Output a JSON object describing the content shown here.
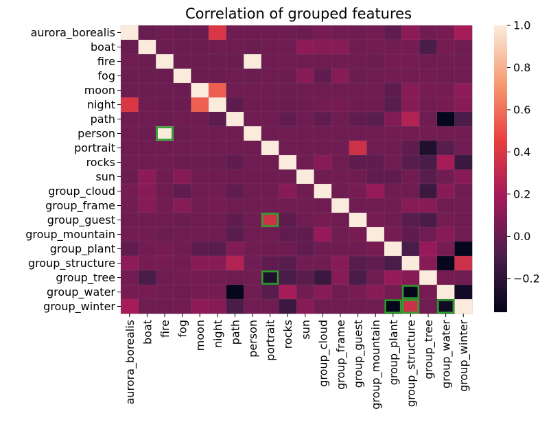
{
  "chart_data": {
    "type": "heatmap",
    "title": "Correlation of grouped features",
    "xlabel": "",
    "ylabel": "",
    "labels": [
      "aurora_borealis",
      "boat",
      "fire",
      "fog",
      "moon",
      "night",
      "path",
      "person",
      "portrait",
      "rocks",
      "sun",
      "group_cloud",
      "group_frame",
      "group_guest",
      "group_mountain",
      "group_plant",
      "group_structure",
      "group_tree",
      "group_water",
      "group_winter"
    ],
    "values": [
      [
        1.0,
        0.0,
        0.02,
        0.01,
        0.01,
        0.4,
        0.02,
        0.02,
        0.02,
        0.02,
        0.01,
        0.05,
        0.03,
        0.02,
        0.03,
        -0.02,
        0.12,
        0.03,
        0.05,
        0.2
      ],
      [
        0.0,
        1.0,
        0.01,
        0.01,
        0.01,
        0.02,
        0.02,
        0.01,
        0.02,
        0.02,
        0.12,
        0.1,
        0.1,
        0.02,
        0.03,
        0.03,
        0.05,
        -0.1,
        0.05,
        0.02
      ],
      [
        0.02,
        0.01,
        1.0,
        0.01,
        0.01,
        0.01,
        0.01,
        1.0,
        0.02,
        0.02,
        0.02,
        0.02,
        0.03,
        0.02,
        0.01,
        0.05,
        0.05,
        0.02,
        0.03,
        0.02
      ],
      [
        0.01,
        0.01,
        0.01,
        1.0,
        0.01,
        0.01,
        0.02,
        0.01,
        0.02,
        0.01,
        0.1,
        -0.02,
        0.1,
        0.01,
        0.02,
        0.03,
        0.03,
        0.03,
        0.02,
        0.02
      ],
      [
        0.01,
        0.01,
        0.01,
        0.01,
        1.0,
        0.55,
        0.02,
        0.02,
        0.02,
        0.01,
        0.02,
        0.02,
        0.02,
        0.02,
        0.02,
        -0.03,
        0.1,
        0.05,
        0.05,
        0.12
      ],
      [
        0.4,
        0.02,
        0.01,
        0.01,
        0.55,
        1.0,
        -0.03,
        0.02,
        0.02,
        0.01,
        0.02,
        0.03,
        0.05,
        0.02,
        0.02,
        -0.05,
        0.1,
        0.03,
        0.05,
        0.1
      ],
      [
        0.02,
        0.02,
        0.01,
        0.02,
        0.02,
        -0.03,
        1.0,
        0.02,
        0.02,
        -0.02,
        0.02,
        -0.02,
        0.02,
        -0.02,
        -0.05,
        0.08,
        0.25,
        0.02,
        -0.35,
        -0.1
      ],
      [
        0.02,
        0.01,
        1.0,
        0.01,
        0.02,
        0.02,
        0.02,
        1.0,
        0.02,
        0.02,
        0.02,
        0.02,
        0.02,
        0.02,
        0.02,
        0.03,
        0.03,
        0.03,
        0.03,
        0.03
      ],
      [
        0.02,
        0.02,
        0.02,
        0.02,
        0.02,
        0.02,
        0.02,
        0.02,
        1.0,
        0.02,
        0.02,
        0.02,
        0.03,
        0.35,
        0.02,
        0.02,
        -0.02,
        -0.25,
        -0.05,
        0.02
      ],
      [
        0.02,
        0.02,
        0.02,
        0.01,
        0.01,
        0.01,
        -0.02,
        0.02,
        0.02,
        1.0,
        0.02,
        0.1,
        0.02,
        -0.03,
        -0.02,
        0.02,
        -0.05,
        -0.1,
        0.2,
        -0.15
      ],
      [
        0.01,
        0.12,
        0.02,
        0.1,
        0.02,
        0.02,
        0.02,
        0.02,
        0.02,
        0.02,
        1.0,
        0.02,
        0.03,
        0.02,
        -0.02,
        -0.02,
        0.03,
        -0.05,
        0.03,
        0.1
      ],
      [
        0.05,
        0.1,
        0.02,
        -0.02,
        0.02,
        0.03,
        -0.02,
        0.02,
        0.02,
        0.1,
        0.02,
        1.0,
        0.02,
        0.05,
        0.15,
        0.02,
        0.02,
        -0.15,
        0.1,
        0.02
      ],
      [
        0.03,
        0.1,
        0.03,
        0.1,
        0.02,
        0.05,
        0.02,
        0.02,
        0.03,
        0.02,
        0.03,
        0.02,
        1.0,
        0.02,
        0.02,
        0.02,
        0.1,
        0.1,
        0.02,
        0.02
      ],
      [
        0.02,
        0.02,
        0.02,
        0.01,
        0.02,
        0.02,
        -0.02,
        0.02,
        0.35,
        -0.03,
        0.02,
        0.05,
        0.02,
        1.0,
        0.05,
        0.02,
        -0.05,
        -0.1,
        0.05,
        0.02
      ],
      [
        0.03,
        0.03,
        0.01,
        0.02,
        0.02,
        0.02,
        -0.05,
        0.02,
        0.02,
        -0.02,
        -0.02,
        0.15,
        0.02,
        0.05,
        1.0,
        0.05,
        -0.02,
        0.02,
        0.1,
        0.02
      ],
      [
        -0.02,
        0.03,
        0.05,
        0.03,
        -0.03,
        -0.05,
        0.08,
        0.03,
        0.02,
        0.02,
        -0.02,
        0.02,
        0.02,
        0.02,
        0.05,
        1.0,
        -0.1,
        0.15,
        0.05,
        -0.35
      ],
      [
        0.12,
        0.05,
        0.05,
        0.03,
        0.1,
        0.1,
        0.25,
        0.03,
        -0.02,
        -0.05,
        0.03,
        0.02,
        0.1,
        -0.05,
        -0.02,
        -0.1,
        1.0,
        0.1,
        -0.35,
        0.35
      ],
      [
        0.03,
        -0.1,
        0.02,
        0.03,
        0.05,
        0.03,
        0.02,
        0.03,
        -0.25,
        -0.1,
        -0.05,
        -0.15,
        0.1,
        -0.1,
        0.02,
        0.15,
        0.1,
        1.0,
        0.05,
        0.02
      ],
      [
        0.05,
        0.05,
        0.03,
        0.02,
        0.05,
        0.05,
        -0.35,
        0.03,
        -0.05,
        0.2,
        0.03,
        0.1,
        0.02,
        0.05,
        0.1,
        0.05,
        -0.35,
        0.05,
        1.0,
        -0.3
      ],
      [
        0.2,
        0.02,
        0.02,
        0.02,
        0.12,
        0.1,
        -0.1,
        0.03,
        0.02,
        -0.15,
        0.1,
        0.02,
        0.02,
        0.02,
        0.02,
        -0.35,
        0.35,
        0.02,
        -0.3,
        1.0
      ]
    ],
    "vmin": -0.36,
    "vmax": 1.0,
    "colorbar_ticks": [
      -0.2,
      0.0,
      0.2,
      0.4,
      0.6,
      0.8,
      1.0
    ],
    "colorbar_tick_labels": [
      "−0.2",
      "0.0",
      "0.2",
      "0.4",
      "0.6",
      "0.8",
      "1.0"
    ],
    "colorscale": [
      "#03051a",
      "#4c1d4b",
      "#a11a5b",
      "#e83f3f",
      "#f69c73",
      "#faebdd"
    ],
    "highlight_color": "#2ca02c",
    "highlighted_cells": [
      {
        "row": 7,
        "col": 2
      },
      {
        "row": 13,
        "col": 8
      },
      {
        "row": 17,
        "col": 8
      },
      {
        "row": 18,
        "col": 16
      },
      {
        "row": 19,
        "col": 15
      },
      {
        "row": 19,
        "col": 16
      },
      {
        "row": 19,
        "col": 18
      }
    ]
  }
}
